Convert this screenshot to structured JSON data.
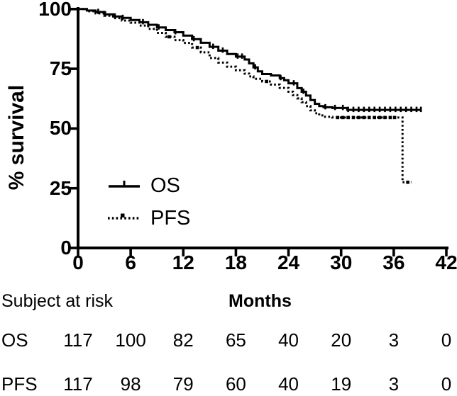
{
  "chart_data": {
    "type": "line",
    "subtype": "kaplan-meier-step",
    "title": "",
    "xlabel": "Months",
    "ylabel": "% survival",
    "xlim": [
      0,
      42
    ],
    "ylim": [
      0,
      100
    ],
    "xticks": [
      0,
      6,
      12,
      18,
      24,
      30,
      36,
      42
    ],
    "yticks": [
      0,
      25,
      50,
      75,
      100
    ],
    "grid": false,
    "legend_position": "inside-lower-left",
    "colors": {
      "line": "#000000",
      "background": "#ffffff"
    },
    "series": [
      {
        "name": "OS",
        "style": "solid-step",
        "points": [
          [
            0,
            100
          ],
          [
            1,
            99.4
          ],
          [
            2,
            98.8
          ],
          [
            3,
            97.8
          ],
          [
            4,
            96.9
          ],
          [
            5,
            96.3
          ],
          [
            6,
            95.4
          ],
          [
            7,
            94.5
          ],
          [
            8,
            93.4
          ],
          [
            9,
            92.3
          ],
          [
            10,
            91.2
          ],
          [
            11,
            90.3
          ],
          [
            12,
            88.9
          ],
          [
            13,
            87.4
          ],
          [
            14,
            85.9
          ],
          [
            15,
            84.2
          ],
          [
            16,
            82.6
          ],
          [
            17,
            81.2
          ],
          [
            18,
            80.1
          ],
          [
            19,
            78.9
          ],
          [
            19.5,
            77.3
          ],
          [
            20,
            75.6
          ],
          [
            20.5,
            73.9
          ],
          [
            21,
            72.8
          ],
          [
            22,
            72.2
          ],
          [
            23,
            71.1
          ],
          [
            23.5,
            70.2
          ],
          [
            24,
            68.9
          ],
          [
            25,
            66.9
          ],
          [
            25.5,
            65.4
          ],
          [
            26,
            63.8
          ],
          [
            26.5,
            61.9
          ],
          [
            27,
            60.3
          ],
          [
            27.5,
            59.4
          ],
          [
            28,
            58.9
          ],
          [
            29,
            58.6
          ],
          [
            30.7,
            57.8
          ]
        ],
        "end_month": 39.2,
        "censor_months": [
          2.3,
          3.1,
          4.2,
          5.1,
          7.4,
          9.2,
          11.1,
          13.2,
          15.4,
          16.5,
          18.2,
          18.7,
          20.2,
          23.1,
          24.6,
          25.7,
          28.2,
          29.3,
          30.2,
          30.8,
          31.4,
          32,
          32.6,
          33.2,
          33.8,
          34.4,
          35,
          35.6,
          36.2,
          36.8,
          37.4,
          38,
          38.6,
          39.1
        ]
      },
      {
        "name": "PFS",
        "style": "dotted-step",
        "points": [
          [
            0,
            100
          ],
          [
            1,
            99.1
          ],
          [
            2,
            98.2
          ],
          [
            3,
            97.2
          ],
          [
            4,
            96.2
          ],
          [
            5,
            95.2
          ],
          [
            6,
            94.3
          ],
          [
            7,
            93.1
          ],
          [
            8,
            91.7
          ],
          [
            9,
            90
          ],
          [
            10,
            88.4
          ],
          [
            11,
            87
          ],
          [
            12,
            85.8
          ],
          [
            13,
            83.9
          ],
          [
            14,
            81.9
          ],
          [
            15,
            79.5
          ],
          [
            16,
            77.6
          ],
          [
            17,
            75.9
          ],
          [
            18,
            74.4
          ],
          [
            19,
            73
          ],
          [
            19.5,
            71.8
          ],
          [
            20,
            70.8
          ],
          [
            21,
            69.7
          ],
          [
            22,
            68.4
          ],
          [
            23,
            67
          ],
          [
            24,
            65.4
          ],
          [
            24.5,
            64
          ],
          [
            25,
            62.6
          ],
          [
            25.5,
            61
          ],
          [
            26,
            59.4
          ],
          [
            26.5,
            57.6
          ],
          [
            27,
            56.4
          ],
          [
            27.5,
            55.5
          ],
          [
            28,
            54.9
          ],
          [
            29,
            54.6
          ],
          [
            37,
            27.5
          ]
        ],
        "end_month": 38,
        "censor_months": [
          10.4,
          13.6,
          21.5,
          29.6,
          30.2,
          30.8,
          31.4,
          32,
          32.6,
          33.2,
          33.8,
          34.4,
          35,
          35.6,
          36.1,
          37.6
        ]
      }
    ],
    "at_risk_table": {
      "label": "Subject at risk",
      "months": [
        0,
        6,
        12,
        18,
        24,
        30,
        36,
        42
      ],
      "rows": [
        {
          "name": "OS",
          "values": [
            117,
            100,
            82,
            65,
            40,
            20,
            3,
            0
          ]
        },
        {
          "name": "PFS",
          "values": [
            117,
            98,
            79,
            60,
            40,
            19,
            3,
            0
          ]
        }
      ]
    }
  }
}
